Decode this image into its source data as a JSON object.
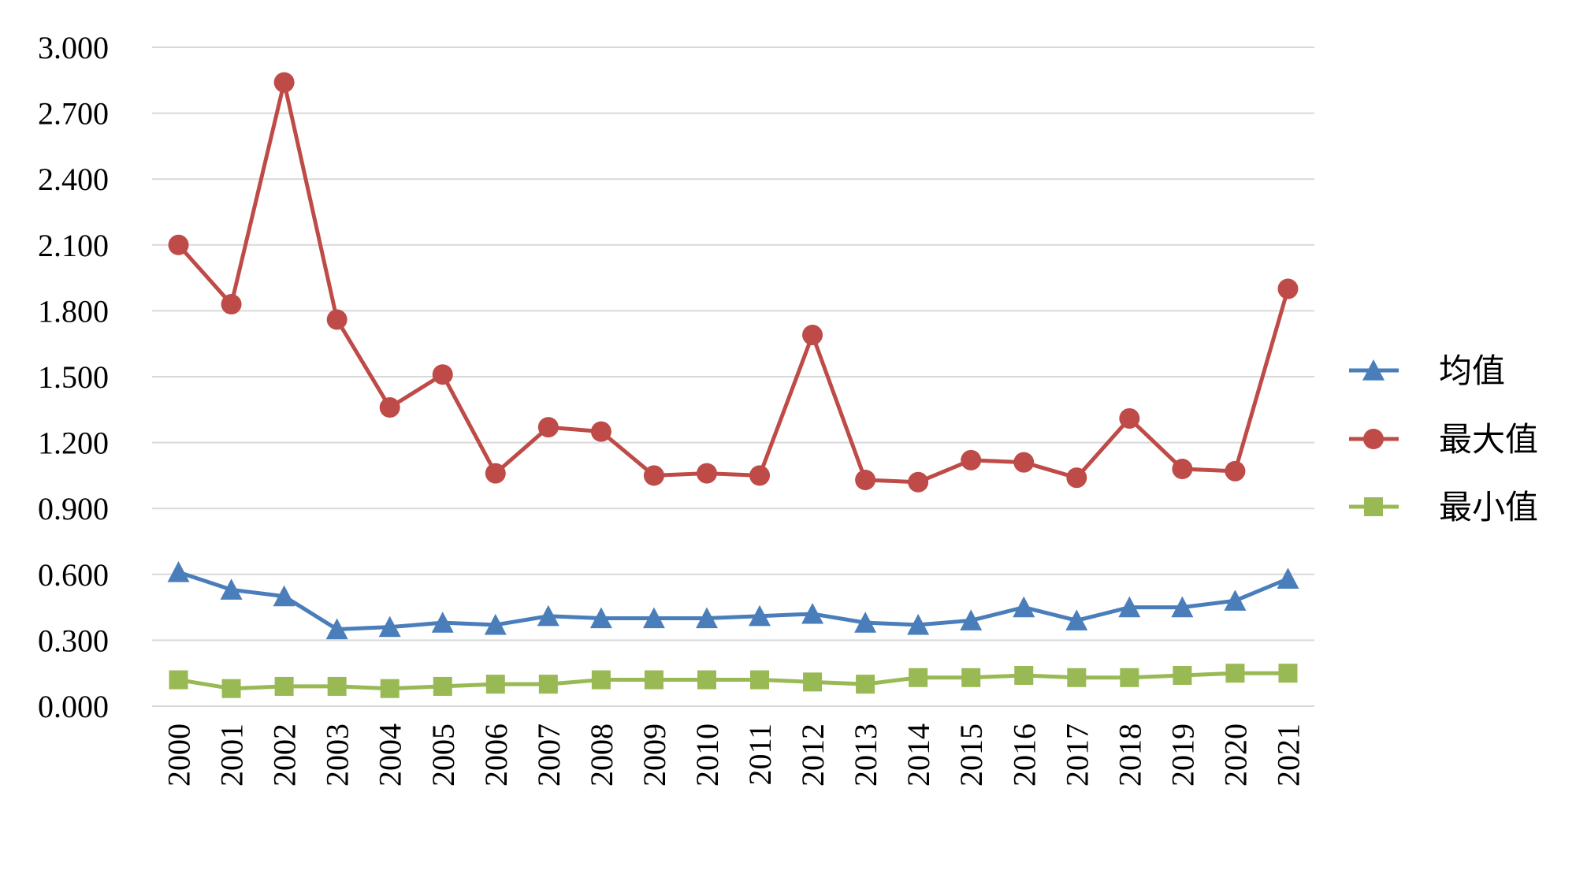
{
  "chart_data": {
    "type": "line",
    "title": "",
    "xlabel": "",
    "ylabel": "",
    "x": [
      "2000",
      "2001",
      "2002",
      "2003",
      "2004",
      "2005",
      "2006",
      "2007",
      "2008",
      "2009",
      "2010",
      "2011",
      "2012",
      "2013",
      "2014",
      "2015",
      "2016",
      "2017",
      "2018",
      "2019",
      "2020",
      "2021"
    ],
    "yticks": [
      "0.000",
      "0.300",
      "0.600",
      "0.900",
      "1.200",
      "1.500",
      "1.800",
      "2.100",
      "2.400",
      "2.700",
      "3.000"
    ],
    "ylim": [
      0,
      3.0
    ],
    "grid": true,
    "legend_position": "right",
    "series": [
      {
        "name": "均值",
        "color": "#4a7ebb",
        "marker": "triangle",
        "values": [
          0.61,
          0.53,
          0.5,
          0.35,
          0.36,
          0.38,
          0.37,
          0.41,
          0.4,
          0.4,
          0.4,
          0.41,
          0.42,
          0.38,
          0.37,
          0.39,
          0.45,
          0.39,
          0.45,
          0.45,
          0.48,
          0.58
        ]
      },
      {
        "name": "最大值",
        "color": "#be4b48",
        "marker": "circle",
        "values": [
          2.1,
          1.83,
          2.84,
          1.76,
          1.36,
          1.51,
          1.06,
          1.27,
          1.25,
          1.05,
          1.06,
          1.05,
          1.69,
          1.03,
          1.02,
          1.12,
          1.11,
          1.04,
          1.31,
          1.08,
          1.07,
          1.9
        ]
      },
      {
        "name": "最小值",
        "color": "#98b954",
        "marker": "square",
        "values": [
          0.12,
          0.08,
          0.09,
          0.09,
          0.08,
          0.09,
          0.1,
          0.1,
          0.12,
          0.12,
          0.12,
          0.12,
          0.11,
          0.1,
          0.13,
          0.13,
          0.14,
          0.13,
          0.13,
          0.14,
          0.15,
          0.15
        ]
      }
    ]
  }
}
